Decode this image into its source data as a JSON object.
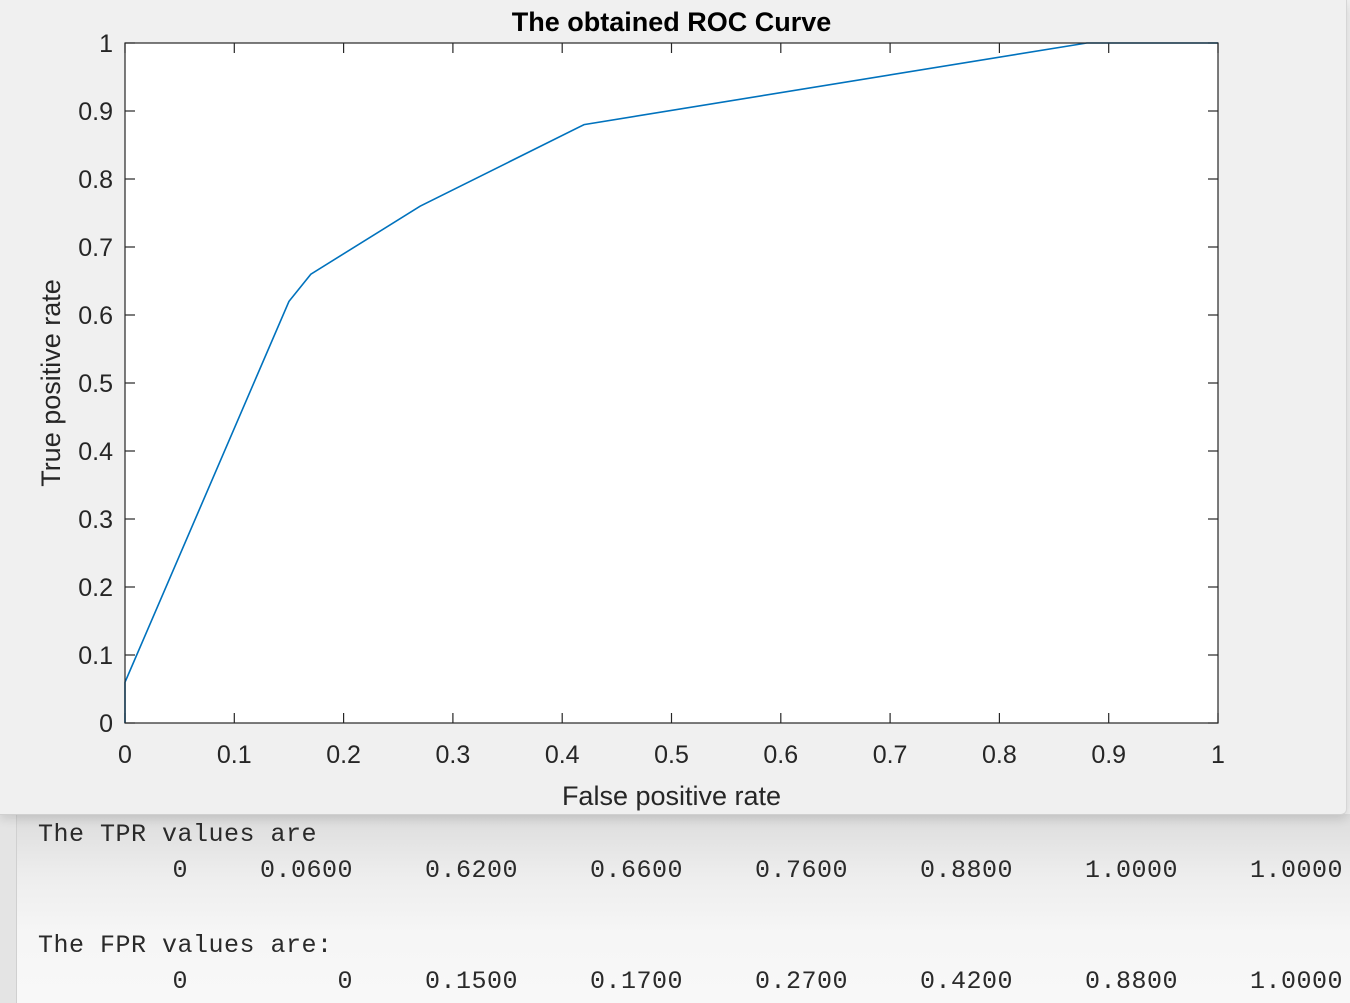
{
  "chart_data": {
    "type": "line",
    "title": "The obtained ROC Curve",
    "xlabel": "False positive rate",
    "ylabel": "True positive rate",
    "xlim": [
      0,
      1
    ],
    "ylim": [
      0,
      1
    ],
    "xticks": [
      "0",
      "0.1",
      "0.2",
      "0.3",
      "0.4",
      "0.5",
      "0.6",
      "0.7",
      "0.8",
      "0.9",
      "1"
    ],
    "yticks": [
      "0",
      "0.1",
      "0.2",
      "0.3",
      "0.4",
      "0.5",
      "0.6",
      "0.7",
      "0.8",
      "0.9",
      "1"
    ],
    "grid": false,
    "line_color": "#0072bd",
    "x": [
      0,
      0,
      0.15,
      0.17,
      0.27,
      0.42,
      0.88,
      1.0
    ],
    "y": [
      0,
      0.06,
      0.62,
      0.66,
      0.76,
      0.88,
      1.0,
      1.0
    ]
  },
  "console": {
    "tpr_header": "The TPR values are",
    "tpr_values": [
      "0",
      "0.0600",
      "0.6200",
      "0.6600",
      "0.7600",
      "0.8800",
      "1.0000",
      "1.0000"
    ],
    "fpr_header": "The FPR values are:",
    "fpr_values": [
      "0",
      "0",
      "0.1500",
      "0.1700",
      "0.2700",
      "0.4200",
      "0.8800",
      "1.0000"
    ]
  }
}
